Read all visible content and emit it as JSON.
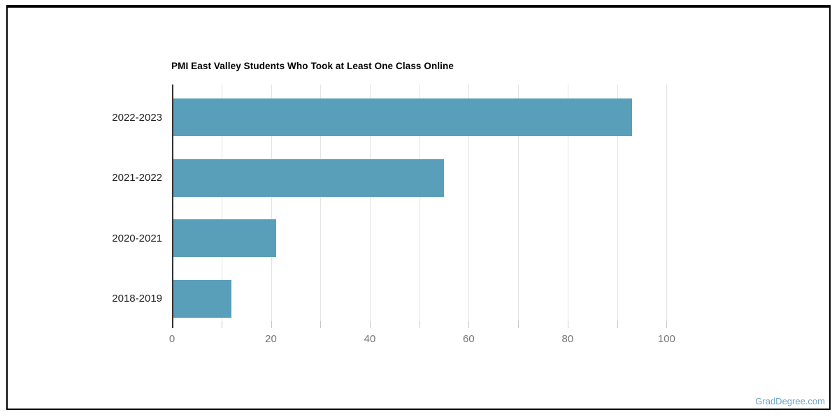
{
  "watermark": {
    "text": "GradDegree.com",
    "color": "#68A3C4"
  },
  "chart_data": {
    "type": "bar",
    "orientation": "horizontal",
    "title": "PMI East Valley Students Who Took at Least One Class Online",
    "categories": [
      "2022-2023",
      "2021-2022",
      "2020-2021",
      "2018-2019"
    ],
    "values": [
      93,
      55,
      21,
      12
    ],
    "xlabel": "",
    "ylabel": "",
    "xlim": [
      0,
      108
    ],
    "x_label_ticks": [
      0,
      20,
      40,
      60,
      80,
      100
    ],
    "x_minor_ticks": [
      10,
      30,
      50,
      70,
      90
    ],
    "gridlines": [
      10,
      20,
      30,
      40,
      50,
      60,
      70,
      80,
      90,
      100
    ],
    "grid": "vertical",
    "legend": "none",
    "colors": {
      "bar": "#5A9FB9",
      "gridline": "#E3E3E3",
      "axis_line": "#333333",
      "tick": "#C6C6C6",
      "tick_label": "#757575",
      "category_label": "#212121",
      "title": "#000000",
      "frame_border": "#000000"
    }
  }
}
